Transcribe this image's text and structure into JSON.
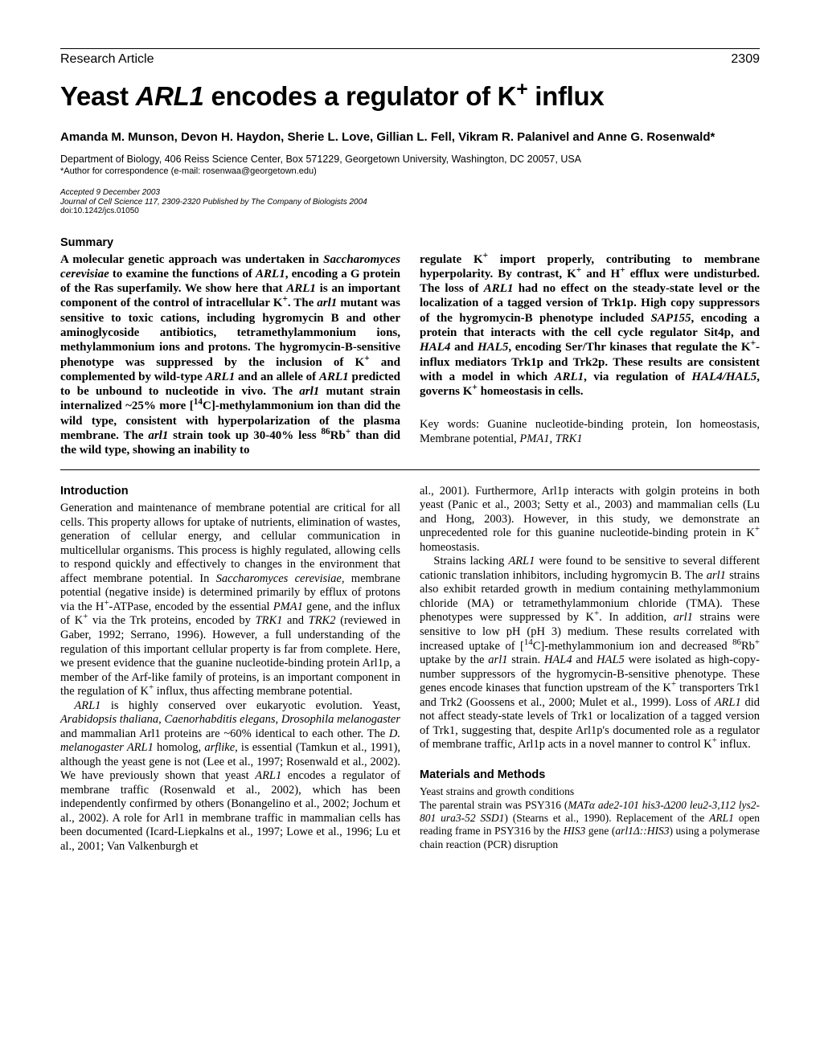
{
  "header": {
    "section": "Research Article",
    "page_number": "2309"
  },
  "title_html": "Yeast <i>ARL1</i> encodes a regulator of K<sup>+</sup> influx",
  "authors": "Amanda M. Munson, Devon H. Haydon, Sherie L. Love, Gillian L. Fell, Vikram R. Palanivel and Anne G. Rosenwald*",
  "affiliation": "Department of Biology, 406 Reiss Science Center, Box 571229, Georgetown University, Washington, DC 20057, USA",
  "correspondence": "*Author for correspondence (e-mail: rosenwaa@georgetown.edu)",
  "accepted": "Accepted 9 December 2003",
  "journal_ref": "Journal of Cell Science 117, 2309-2320 Published by The Company of Biologists 2004",
  "doi": "doi:10.1242/jcs.01050",
  "summary_heading": "Summary",
  "summary_col1_html": "A molecular genetic approach was undertaken in <i>Saccharomyces cerevisiae</i> to examine the functions of <i>ARL1</i>, encoding a G protein of the Ras superfamily. We show here that <i>ARL1</i> is an important component of the control of intracellular K<sup>+</sup>. The <i>arl1</i> mutant was sensitive to toxic cations, including hygromycin B and other aminoglycoside antibiotics, tetramethylammonium ions, methylammonium ions and protons. The hygromycin-B-sensitive phenotype was suppressed by the inclusion of K<sup>+</sup> and complemented by wild-type <i>ARL1</i> and an allele of <i>ARL1</i> predicted to be unbound to nucleotide in vivo. The <i>arl1</i> mutant strain internalized ~25% more [<sup>14</sup>C]-methylammonium ion than did the wild type, consistent with hyperpolarization of the plasma membrane. The <i>arl1</i> strain took up 30-40% less <sup>86</sup>Rb<sup>+</sup> than did the wild type, showing an inability to",
  "summary_col2_html": "regulate K<sup>+</sup> import properly, contributing to membrane hyperpolarity. By contrast, K<sup>+</sup> and H<sup>+</sup> efflux were undisturbed. The loss of <i>ARL1</i> had no effect on the steady-state level or the localization of a tagged version of Trk1p. High copy suppressors of the hygromycin-B phenotype included <i>SAP155</i>, encoding a protein that interacts with the cell cycle regulator Sit4p, and <i>HAL4</i> and <i>HAL5</i>, encoding Ser/Thr kinases that regulate the K<sup>+</sup>-influx mediators Trk1p and Trk2p. These results are consistent with a model in which <i>ARL1</i>, via regulation of <i>HAL4/HAL5</i>, governs K<sup>+</sup> homeostasis in cells.",
  "keywords_html": "Key words: Guanine nucleotide-binding protein, Ion homeostasis, Membrane potential, <i>PMA1</i>, <i>TRK1</i>",
  "intro_heading": "Introduction",
  "intro_col1_p1_html": "Generation and maintenance of membrane potential are critical for all cells. This property allows for uptake of nutrients, elimination of wastes, generation of cellular energy, and cellular communication in multicellular organisms. This process is highly regulated, allowing cells to respond quickly and effectively to changes in the environment that affect membrane potential. In <i>Saccharomyces cerevisiae</i>, membrane potential (negative inside) is determined primarily by efflux of protons via the H<sup>+</sup>-ATPase, encoded by the essential <i>PMA1</i> gene, and the influx of K<sup>+</sup> via the Trk proteins, encoded by <i>TRK1</i> and <i>TRK2</i> (reviewed in Gaber, 1992; Serrano, 1996). However, a full understanding of the regulation of this important cellular property is far from complete. Here, we present evidence that the guanine nucleotide-binding protein Arl1p, a member of the Arf-like family of proteins, is an important component in the regulation of K<sup>+</sup> influx, thus affecting membrane potential.",
  "intro_col1_p2_html": "<i>ARL1</i> is highly conserved over eukaryotic evolution. Yeast, <i>Arabidopsis thaliana</i>, <i>Caenorhabditis elegans</i>, <i>Drosophila melanogaster</i> and mammalian Arl1 proteins are ~60% identical to each other. The <i>D. melanogaster ARL1</i> homolog, <i>arflike</i>, is essential (Tamkun et al., 1991), although the yeast gene is not (Lee et al., 1997; Rosenwald et al., 2002). We have previously shown that yeast <i>ARL1</i> encodes a regulator of membrane traffic (Rosenwald et al., 2002), which has been independently confirmed by others (Bonangelino et al., 2002; Jochum et al., 2002). A role for Arl1 in membrane traffic in mammalian cells has been documented (Icard-Liepkalns et al., 1997; Lowe et al., 1996; Lu et al., 2001; Van Valkenburgh et",
  "intro_col2_p1_html": "al., 2001). Furthermore, Arl1p interacts with golgin proteins in both yeast (Panic et al., 2003; Setty et al., 2003) and mammalian cells (Lu and Hong, 2003). However, in this study, we demonstrate an unprecedented role for this guanine nucleotide-binding protein in K<sup>+</sup> homeostasis.",
  "intro_col2_p2_html": "Strains lacking <i>ARL1</i> were found to be sensitive to several different cationic translation inhibitors, including hygromycin B. The <i>arl1</i> strains also exhibit retarded growth in medium containing methylammonium chloride (MA) or tetramethylammonium chloride (TMA). These phenotypes were suppressed by K<sup>+</sup>. In addition, <i>arl1</i> strains were sensitive to low pH (pH 3) medium. These results correlated with increased uptake of [<sup>14</sup>C]-methylammonium ion and decreased <sup>86</sup>Rb<sup>+</sup> uptake by the <i>arl1</i> strain. <i>HAL4</i> and <i>HAL5</i> were isolated as high-copy-number suppressors of the hygromycin-B-sensitive phenotype. These genes encode kinases that function upstream of the K<sup>+</sup> transporters Trk1 and Trk2 (Goossens et al., 2000; Mulet et al., 1999). Loss of <i>ARL1</i> did not affect steady-state levels of Trk1 or localization of a tagged version of Trk1, suggesting that, despite Arl1p's documented role as a regulator of membrane traffic, Arl1p acts in a novel manner to control K<sup>+</sup> influx.",
  "mm_heading": "Materials and Methods",
  "mm_sub_heading": "Yeast strains and growth conditions",
  "mm_text_html": "The parental strain was PSY316 (<i>MATα ade2-101 his3-Δ200 leu2-3,112 lys2-801 ura3-52 SSD1</i>) (Stearns et al., 1990). Replacement of the <i>ARL1</i> open reading frame in PSY316 by the <i>HIS3</i> gene (<i>arl1Δ::HIS3</i>) using a polymerase chain reaction (PCR) disruption"
}
